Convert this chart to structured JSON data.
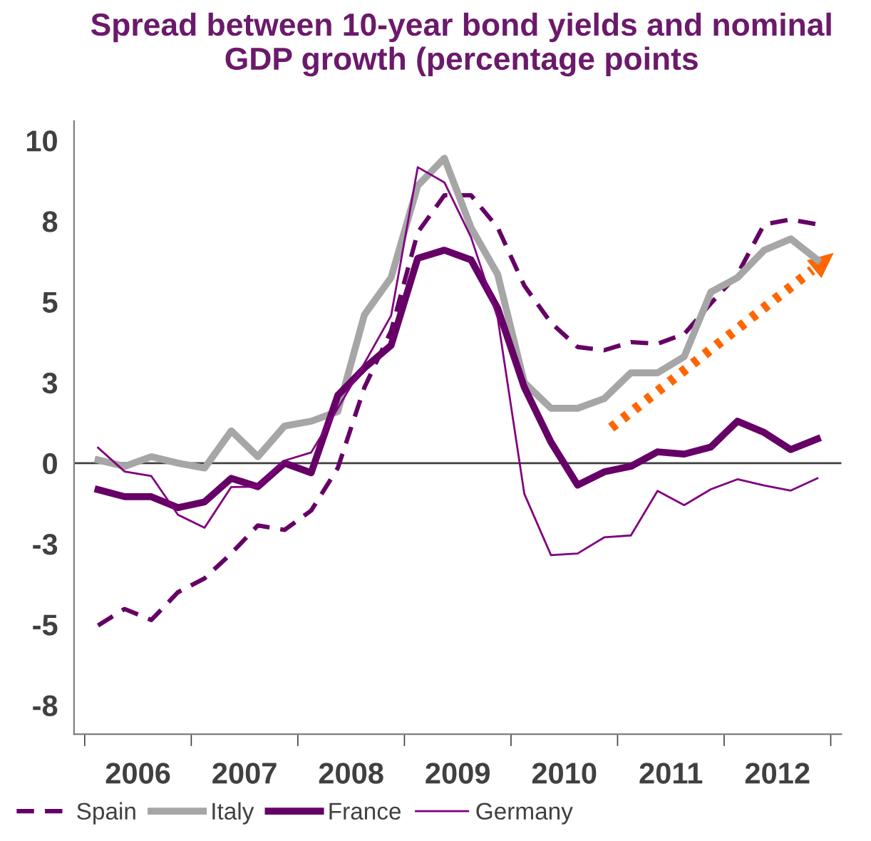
{
  "chart_data": {
    "type": "line",
    "title": "Spread between 10-year bond yields and nominal GDP growth (percentage points",
    "x": [
      2006.125,
      2006.375,
      2006.625,
      2006.875,
      2007.125,
      2007.375,
      2007.625,
      2007.875,
      2008.125,
      2008.375,
      2008.625,
      2008.875,
      2009.125,
      2009.375,
      2009.625,
      2009.875,
      2010.125,
      2010.375,
      2010.625,
      2010.875,
      2011.125,
      2011.375,
      2011.625,
      2011.875,
      2012.125,
      2012.375,
      2012.625,
      2012.875
    ],
    "series": [
      {
        "name": "Spain",
        "color": "#660066",
        "line_style": "dashed",
        "values": [
          -5.03,
          -4.52,
          -4.86,
          -4.0,
          -3.57,
          -2.8,
          -1.93,
          -2.07,
          -1.47,
          -0.15,
          2.35,
          4.1,
          7.15,
          8.3,
          8.3,
          7.3,
          5.5,
          4.35,
          3.6,
          3.5,
          3.75,
          3.7,
          4.0,
          4.95,
          5.85,
          7.4,
          7.55,
          7.4
        ]
      },
      {
        "name": "Italy",
        "color": "#a6a6a6",
        "line_style": "solid",
        "values": [
          0.1,
          -0.1,
          0.2,
          0.0,
          -0.15,
          1.0,
          0.2,
          1.15,
          1.3,
          1.6,
          4.6,
          5.75,
          8.6,
          9.45,
          7.3,
          5.85,
          2.5,
          1.7,
          1.7,
          2.0,
          2.8,
          2.8,
          3.3,
          5.3,
          5.75,
          6.6,
          6.95,
          6.3
        ]
      },
      {
        "name": "France",
        "color": "#660066",
        "line_style": "solid",
        "values": [
          -0.82,
          -1.04,
          -1.04,
          -1.38,
          -1.2,
          -0.47,
          -0.73,
          0.0,
          -0.3,
          2.1,
          2.95,
          3.65,
          6.35,
          6.6,
          6.3,
          4.8,
          2.35,
          0.65,
          -0.68,
          -0.27,
          -0.1,
          0.35,
          0.28,
          0.5,
          1.3,
          0.95,
          0.42,
          0.75
        ]
      },
      {
        "name": "Germany",
        "color": "#800080",
        "line_style": "solid",
        "values": [
          0.48,
          -0.26,
          -0.4,
          -1.6,
          -2.0,
          -0.74,
          -0.73,
          0.08,
          0.33,
          1.7,
          3.1,
          4.57,
          9.17,
          8.7,
          7.0,
          4.5,
          -0.95,
          -2.85,
          -2.8,
          -2.3,
          -2.24,
          -0.86,
          -1.3,
          -0.81,
          -0.5,
          -0.69,
          -0.85,
          -0.47
        ]
      }
    ],
    "xlim": [
      2005.9,
      2013.1
    ],
    "xticks": [
      {
        "value": 2006,
        "label": null
      },
      {
        "value": 2006.5,
        "label": "2006"
      },
      {
        "value": 2007,
        "label": null
      },
      {
        "value": 2007.5,
        "label": "2007"
      },
      {
        "value": 2008,
        "label": null
      },
      {
        "value": 2008.5,
        "label": "2008"
      },
      {
        "value": 2009,
        "label": null
      },
      {
        "value": 2009.5,
        "label": "2009"
      },
      {
        "value": 2010,
        "label": null
      },
      {
        "value": 2010.5,
        "label": "2010"
      },
      {
        "value": 2011,
        "label": null
      },
      {
        "value": 2011.5,
        "label": "2011"
      },
      {
        "value": 2012,
        "label": null
      },
      {
        "value": 2012.5,
        "label": "2012"
      },
      {
        "value": 2013,
        "label": null
      }
    ],
    "ylim": [
      -8.4,
      10.6
    ],
    "yticks": [
      {
        "value": -7.5,
        "label": "-8"
      },
      {
        "value": -5,
        "label": "-5"
      },
      {
        "value": -2.5,
        "label": "-3"
      },
      {
        "value": 0,
        "label": "0"
      },
      {
        "value": 2.5,
        "label": "3"
      },
      {
        "value": 5,
        "label": "5"
      },
      {
        "value": 7.5,
        "label": "8"
      },
      {
        "value": 10,
        "label": "10"
      }
    ],
    "ref_lines": [
      {
        "axis": "y",
        "value": 0,
        "color": "#404040"
      }
    ],
    "grid": false,
    "legend": "bottom",
    "marker": "none"
  }
}
